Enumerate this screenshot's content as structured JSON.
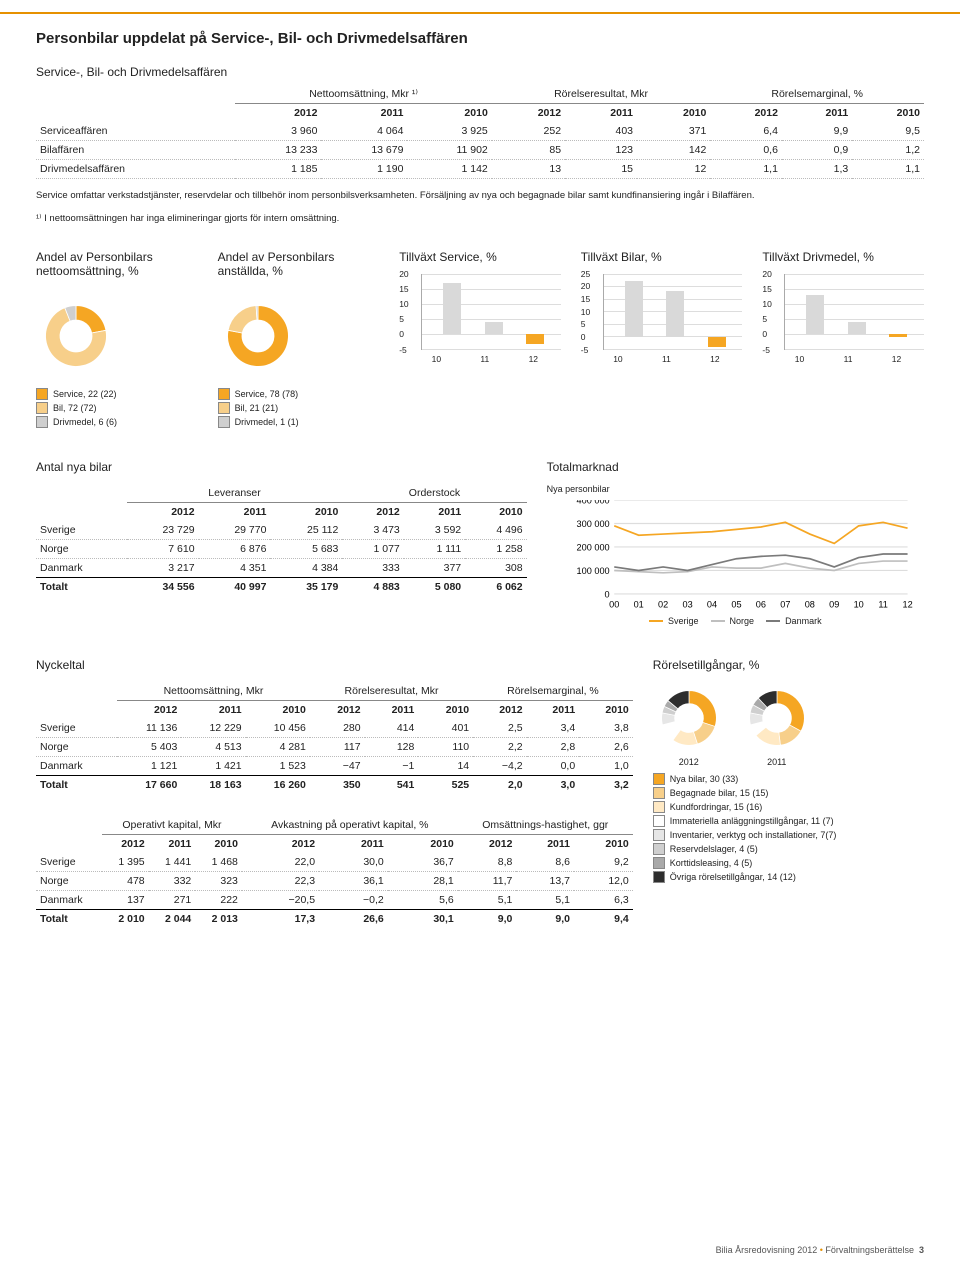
{
  "page": {
    "title": "Personbilar uppdelat på Service-, Bil- och Drivmedelsaffären",
    "subtitle": "Service-, Bil- och Drivmedelsaffären",
    "footer_company": "Bilia Årsredovisning 2012",
    "footer_section": "Förvaltningsberättelse",
    "footer_page": "3"
  },
  "table1": {
    "sup_headers": [
      "Nettoomsättning, Mkr ¹⁾",
      "Rörelseresultat, Mkr",
      "Rörelsemarginal, %"
    ],
    "years": [
      "2012",
      "2011",
      "2010",
      "2012",
      "2011",
      "2010",
      "2012",
      "2011",
      "2010"
    ],
    "rows": [
      {
        "label": "Serviceaffären",
        "v": [
          "3 960",
          "4 064",
          "3 925",
          "252",
          "403",
          "371",
          "6,4",
          "9,9",
          "9,5"
        ]
      },
      {
        "label": "Bilaffären",
        "v": [
          "13 233",
          "13 679",
          "11 902",
          "85",
          "123",
          "142",
          "0,6",
          "0,9",
          "1,2"
        ]
      },
      {
        "label": "Drivmedelsaffären",
        "v": [
          "1 185",
          "1 190",
          "1 142",
          "13",
          "15",
          "12",
          "1,1",
          "1,3",
          "1,1"
        ]
      }
    ],
    "note": "Service omfattar verkstadstjänster, reservdelar och tillbehör inom personbilsverksamheten. Försäljning av nya och begagnade bilar samt kundfinansiering ingår i Bilaffären.",
    "note2": "¹⁾ I nettoomsättningen har inga elimineringar gjorts för intern omsättning."
  },
  "donut_netto": {
    "title": "Andel av Personbilars nettoomsättning, %",
    "slices": [
      {
        "label": "Service, 22 (22)",
        "v": 22,
        "c": "#f5a623"
      },
      {
        "label": "Bil, 72 (72)",
        "v": 72,
        "c": "#f7cf8a"
      },
      {
        "label": "Drivmedel, 6 (6)",
        "v": 6,
        "c": "#cfcfcf"
      }
    ]
  },
  "donut_anst": {
    "title": "Andel av Personbilars anställda, %",
    "slices": [
      {
        "label": "Service, 78 (78)",
        "v": 78,
        "c": "#f5a623"
      },
      {
        "label": "Bil, 21 (21)",
        "v": 21,
        "c": "#f7cf8a"
      },
      {
        "label": "Drivmedel, 1 (1)",
        "v": 1,
        "c": "#cfcfcf"
      }
    ]
  },
  "growth_service": {
    "title": "Tillväxt Service, %",
    "ymin": -5,
    "ymax": 20,
    "step": 5,
    "cats": [
      "10",
      "11",
      "12"
    ],
    "vals": [
      17,
      4,
      -3
    ],
    "colors": [
      "#d9d9d9",
      "#d9d9d9",
      "#f5a623"
    ]
  },
  "growth_bilar": {
    "title": "Tillväxt Bilar, %",
    "ymin": -5,
    "ymax": 25,
    "step": 5,
    "cats": [
      "10",
      "11",
      "12"
    ],
    "vals": [
      22,
      18,
      -4
    ],
    "colors": [
      "#d9d9d9",
      "#d9d9d9",
      "#f5a623"
    ]
  },
  "growth_driv": {
    "title": "Tillväxt Drivmedel, %",
    "ymin": -5,
    "ymax": 20,
    "step": 5,
    "cats": [
      "10",
      "11",
      "12"
    ],
    "vals": [
      13,
      4,
      -1
    ],
    "colors": [
      "#d9d9d9",
      "#d9d9d9",
      "#f5a623"
    ]
  },
  "antal": {
    "title": "Antal nya bilar",
    "sup_headers": [
      "Leveranser",
      "Orderstock"
    ],
    "years": [
      "2012",
      "2011",
      "2010",
      "2012",
      "2011",
      "2010"
    ],
    "rows": [
      {
        "label": "Sverige",
        "v": [
          "23 729",
          "29 770",
          "25 112",
          "3 473",
          "3 592",
          "4 496"
        ]
      },
      {
        "label": "Norge",
        "v": [
          "7 610",
          "6 876",
          "5 683",
          "1 077",
          "1 111",
          "1 258"
        ]
      },
      {
        "label": "Danmark",
        "v": [
          "3 217",
          "4 351",
          "4 384",
          "333",
          "377",
          "308"
        ]
      }
    ],
    "total": {
      "label": "Totalt",
      "v": [
        "34 556",
        "40 997",
        "35 179",
        "4 883",
        "5 080",
        "6 062"
      ]
    }
  },
  "totalmarknad": {
    "title": "Totalmarknad",
    "sub": "Nya personbilar",
    "ymin": 0,
    "ymax": 400000,
    "step": 100000,
    "cats": [
      "00",
      "01",
      "02",
      "03",
      "04",
      "05",
      "06",
      "07",
      "08",
      "09",
      "10",
      "11",
      "12"
    ],
    "series": [
      {
        "label": "Sverige",
        "c": "#f5a623",
        "vals": [
          290000,
          250000,
          255000,
          260000,
          265000,
          275000,
          285000,
          305000,
          255000,
          215000,
          290000,
          305000,
          280000
        ]
      },
      {
        "label": "Norge",
        "c": "#bfbfbf",
        "vals": [
          100000,
          95000,
          90000,
          95000,
          115000,
          110000,
          110000,
          130000,
          110000,
          100000,
          130000,
          140000,
          140000
        ]
      },
      {
        "label": "Danmark",
        "c": "#7a7a7a",
        "vals": [
          115000,
          100000,
          115000,
          100000,
          125000,
          150000,
          160000,
          165000,
          150000,
          115000,
          155000,
          170000,
          170000
        ]
      }
    ]
  },
  "nyckeltal": {
    "title": "Nyckeltal",
    "sup_headers": [
      "Nettoomsättning, Mkr",
      "Rörelseresultat, Mkr",
      "Rörelsemarginal, %"
    ],
    "years": [
      "2012",
      "2011",
      "2010",
      "2012",
      "2011",
      "2010",
      "2012",
      "2011",
      "2010"
    ],
    "rows": [
      {
        "label": "Sverige",
        "v": [
          "11 136",
          "12 229",
          "10 456",
          "280",
          "414",
          "401",
          "2,5",
          "3,4",
          "3,8"
        ]
      },
      {
        "label": "Norge",
        "v": [
          "5 403",
          "4 513",
          "4 281",
          "117",
          "128",
          "110",
          "2,2",
          "2,8",
          "2,6"
        ]
      },
      {
        "label": "Danmark",
        "v": [
          "1 121",
          "1 421",
          "1 523",
          "−47",
          "−1",
          "14",
          "−4,2",
          "0,0",
          "1,0"
        ]
      }
    ],
    "total": {
      "label": "Totalt",
      "v": [
        "17 660",
        "18 163",
        "16 260",
        "350",
        "541",
        "525",
        "2,0",
        "3,0",
        "3,2"
      ]
    }
  },
  "nyckeltal2": {
    "sup_headers": [
      "Operativt kapital, Mkr",
      "Avkastning på operativt kapital, %",
      "Omsättnings-hastighet, ggr"
    ],
    "years": [
      "2012",
      "2011",
      "2010",
      "2012",
      "2011",
      "2010",
      "2012",
      "2011",
      "2010"
    ],
    "rows": [
      {
        "label": "Sverige",
        "v": [
          "1 395",
          "1 441",
          "1 468",
          "22,0",
          "30,0",
          "36,7",
          "8,8",
          "8,6",
          "9,2"
        ]
      },
      {
        "label": "Norge",
        "v": [
          "478",
          "332",
          "323",
          "22,3",
          "36,1",
          "28,1",
          "11,7",
          "13,7",
          "12,0"
        ]
      },
      {
        "label": "Danmark",
        "v": [
          "137",
          "271",
          "222",
          "−20,5",
          "−0,2",
          "5,6",
          "5,1",
          "5,1",
          "6,3"
        ]
      }
    ],
    "total": {
      "label": "Totalt",
      "v": [
        "2 010",
        "2 044",
        "2 013",
        "17,3",
        "26,6",
        "30,1",
        "9,0",
        "9,0",
        "9,4"
      ]
    }
  },
  "rorelse": {
    "title": "Rörelsetillgångar, %",
    "year_a": "2012",
    "year_b": "2011",
    "legend": [
      {
        "label": "Nya bilar, 30 (33)",
        "c": "#f5a623"
      },
      {
        "label": "Begagnade bilar, 15 (15)",
        "c": "#f7cf8a"
      },
      {
        "label": "Kundfordringar, 15 (16)",
        "c": "#ffe9c4"
      },
      {
        "label": "Immateriella anläggnings­tillgångar, 11 (7)",
        "c": "#ffffff"
      },
      {
        "label": "Inventarier, verktyg och installationer, 7(7)",
        "c": "#e6e6e6"
      },
      {
        "label": "Reservdelslager, 4 (5)",
        "c": "#cfcfcf"
      },
      {
        "label": "Korttidsleasing, 4 (5)",
        "c": "#a9a9a9"
      },
      {
        "label": "Övriga rörelsetillgångar, 14 (12)",
        "c": "#2d2d2d"
      }
    ],
    "donut2012": [
      30,
      15,
      15,
      11,
      7,
      4,
      4,
      14
    ],
    "donut2011": [
      33,
      15,
      16,
      7,
      7,
      5,
      5,
      12
    ]
  }
}
